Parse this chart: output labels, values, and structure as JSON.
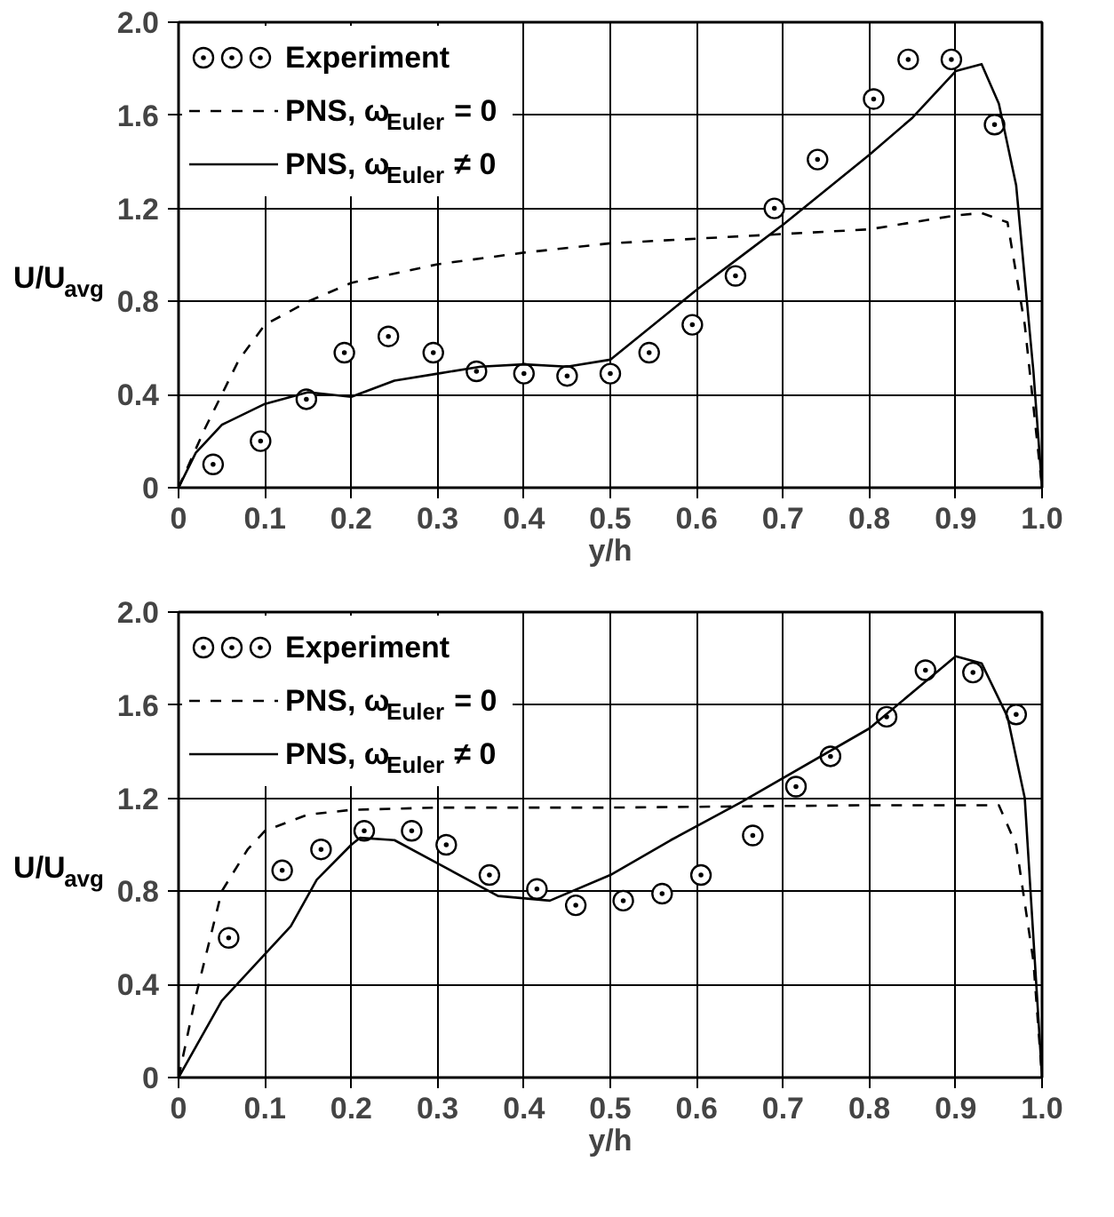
{
  "chart_data": [
    {
      "type": "line",
      "xlabel": "y/h",
      "ylabel": "U/U$_{avg}$",
      "xlim": [
        0,
        1.0
      ],
      "ylim": [
        0,
        2.0
      ],
      "xticks": [
        0,
        0.1,
        0.2,
        0.3,
        0.4,
        0.5,
        0.6,
        0.7,
        0.8,
        0.9,
        {
          "value": 1.0,
          "label": "1.0"
        }
      ],
      "yticks": [
        0,
        0.4,
        0.8,
        1.2,
        1.6,
        {
          "value": 2.0,
          "label": "2.0"
        }
      ],
      "grid": true,
      "legend": "top left",
      "series": [
        {
          "name": "Experiment",
          "type": "scatter",
          "marker": "circle",
          "color": "#000000",
          "x": [
            0.04,
            0.095,
            0.148,
            0.192,
            0.243,
            0.295,
            0.345,
            0.4,
            0.45,
            0.5,
            0.545,
            0.595,
            0.645,
            0.69,
            0.74,
            0.805,
            0.845,
            0.895,
            0.945
          ],
          "values": [
            0.1,
            0.2,
            0.38,
            0.58,
            0.65,
            0.58,
            0.5,
            0.49,
            0.48,
            0.49,
            0.58,
            0.7,
            0.91,
            1.2,
            1.41,
            1.67,
            1.84,
            1.84,
            1.56
          ]
        },
        {
          "name": "PNS, ω$_{Euler}$ = 0",
          "line_style": "dashed",
          "color": "#000000",
          "x": [
            0,
            0.03,
            0.07,
            0.1,
            0.15,
            0.2,
            0.3,
            0.4,
            0.5,
            0.6,
            0.7,
            0.8,
            0.9,
            0.93,
            0.96,
            0.98,
            1.0
          ],
          "values": [
            0,
            0.25,
            0.55,
            0.7,
            0.8,
            0.88,
            0.96,
            1.01,
            1.05,
            1.07,
            1.09,
            1.11,
            1.17,
            1.18,
            1.14,
            0.7,
            0
          ]
        },
        {
          "name": "PNS, ω$_{Euler}$ ≠ 0",
          "line_style": "solid",
          "color": "#000000",
          "x": [
            0,
            0.02,
            0.05,
            0.1,
            0.15,
            0.2,
            0.25,
            0.3,
            0.35,
            0.4,
            0.45,
            0.5,
            0.6,
            0.65,
            0.7,
            0.8,
            0.85,
            0.9,
            0.93,
            0.95,
            0.97,
            0.99,
            1.0
          ],
          "values": [
            0,
            0.15,
            0.27,
            0.36,
            0.41,
            0.39,
            0.46,
            0.49,
            0.52,
            0.53,
            0.52,
            0.55,
            0.85,
            0.99,
            1.13,
            1.43,
            1.59,
            1.79,
            1.82,
            1.65,
            1.3,
            0.5,
            0
          ]
        }
      ]
    },
    {
      "type": "line",
      "xlabel": "y/h",
      "ylabel": "U/U$_{avg}$",
      "xlim": [
        0,
        1.0
      ],
      "ylim": [
        0,
        2.0
      ],
      "xticks": [
        0,
        0.1,
        0.2,
        0.3,
        0.4,
        0.5,
        0.6,
        0.7,
        0.8,
        0.9,
        {
          "value": 1.0,
          "label": "1.0"
        }
      ],
      "yticks": [
        0,
        0.4,
        0.8,
        1.2,
        1.6,
        {
          "value": 2.0,
          "label": "2.0"
        }
      ],
      "grid": true,
      "legend": "top left",
      "series": [
        {
          "name": "Experiment",
          "type": "scatter",
          "marker": "circle",
          "color": "#000000",
          "x": [
            0.058,
            0.12,
            0.165,
            0.215,
            0.27,
            0.31,
            0.36,
            0.415,
            0.46,
            0.515,
            0.56,
            0.605,
            0.665,
            0.715,
            0.755,
            0.82,
            0.865,
            0.92,
            0.97
          ],
          "values": [
            0.6,
            0.89,
            0.98,
            1.06,
            1.06,
            1.0,
            0.87,
            0.81,
            0.74,
            0.76,
            0.79,
            0.87,
            1.04,
            1.25,
            1.38,
            1.55,
            1.75,
            1.74,
            1.56
          ]
        },
        {
          "name": "PNS, ω$_{Euler}$ = 0",
          "line_style": "dashed",
          "color": "#000000",
          "x": [
            0,
            0.02,
            0.05,
            0.08,
            0.1,
            0.15,
            0.2,
            0.3,
            0.5,
            0.8,
            0.95,
            0.97,
            0.99,
            1.0
          ],
          "values": [
            0,
            0.35,
            0.8,
            0.98,
            1.06,
            1.13,
            1.15,
            1.16,
            1.16,
            1.17,
            1.17,
            1.0,
            0.5,
            0
          ]
        },
        {
          "name": "PNS, ω$_{Euler}$ ≠ 0",
          "line_style": "solid",
          "color": "#000000",
          "x": [
            0,
            0.05,
            0.1,
            0.13,
            0.16,
            0.2,
            0.21,
            0.25,
            0.3,
            0.37,
            0.43,
            0.5,
            0.57,
            0.65,
            0.8,
            0.9,
            0.93,
            0.96,
            0.98,
            1.0
          ],
          "values": [
            0,
            0.33,
            0.53,
            0.65,
            0.85,
            1.0,
            1.03,
            1.02,
            0.92,
            0.78,
            0.76,
            0.87,
            1.02,
            1.18,
            1.5,
            1.81,
            1.78,
            1.55,
            1.2,
            0
          ]
        }
      ]
    }
  ]
}
